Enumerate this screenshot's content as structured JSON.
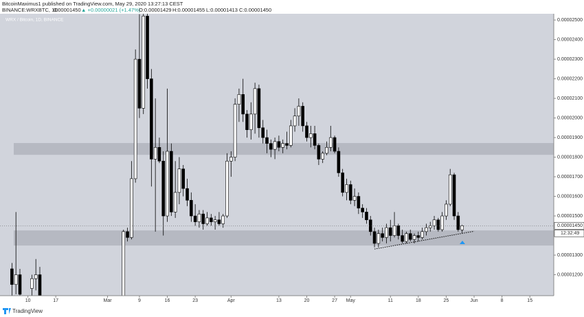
{
  "header": {
    "author": "BitcoinMaximus1 published on TradingView.com, May 29, 2020 13:27:13 CEST",
    "symbol": "BINANCE:WRXBTC, 1D",
    "last": "0.00001450",
    "change": "▲ +0.00000021 (+1.47%)",
    "ohlc": [
      "O:0.00001429",
      "H:0.00001455",
      "L:0.00001413",
      "C:0.00001450"
    ]
  },
  "price_tag": "0.00001450",
  "countdown": "12:32:49",
  "footer": "TradingView",
  "chart_data": {
    "type": "candlestick",
    "title": "WRX / Bitcoin, 1D, BINANCE",
    "x": [
      "2020-02-06",
      "2020-02-07",
      "2020-02-08",
      "2020-02-11",
      "2020-02-12",
      "2020-02-13",
      "2020-03-05",
      "2020-03-06",
      "2020-03-07",
      "2020-03-08",
      "2020-03-09",
      "2020-03-10",
      "2020-03-11",
      "2020-03-12",
      "2020-03-13",
      "2020-03-14",
      "2020-03-15",
      "2020-03-16",
      "2020-03-17",
      "2020-03-18",
      "2020-03-19",
      "2020-03-20",
      "2020-03-21",
      "2020-03-22",
      "2020-03-23",
      "2020-03-24",
      "2020-03-25",
      "2020-03-26",
      "2020-03-27",
      "2020-03-28",
      "2020-03-29",
      "2020-03-30",
      "2020-03-31",
      "2020-04-01",
      "2020-04-02",
      "2020-04-03",
      "2020-04-04",
      "2020-04-05",
      "2020-04-06",
      "2020-04-07",
      "2020-04-08",
      "2020-04-09",
      "2020-04-10",
      "2020-04-11",
      "2020-04-12",
      "2020-04-13",
      "2020-04-14",
      "2020-04-15",
      "2020-04-16",
      "2020-04-17",
      "2020-04-18",
      "2020-04-19",
      "2020-04-20",
      "2020-04-21",
      "2020-04-22",
      "2020-04-23",
      "2020-04-24",
      "2020-04-25",
      "2020-04-26",
      "2020-04-27",
      "2020-04-28",
      "2020-04-29",
      "2020-04-30",
      "2020-05-01",
      "2020-05-02",
      "2020-05-03",
      "2020-05-04",
      "2020-05-05",
      "2020-05-06",
      "2020-05-07",
      "2020-05-08",
      "2020-05-09",
      "2020-05-10",
      "2020-05-11",
      "2020-05-12",
      "2020-05-13",
      "2020-05-14",
      "2020-05-15",
      "2020-05-16",
      "2020-05-17",
      "2020-05-18",
      "2020-05-19",
      "2020-05-20",
      "2020-05-21",
      "2020-05-22",
      "2020-05-23",
      "2020-05-24",
      "2020-05-25",
      "2020-05-26",
      "2020-05-27",
      "2020-05-28",
      "2020-05-29"
    ],
    "open": [
      1.23e-05,
      1.15e-05,
      1.2e-05,
      1.13e-05,
      1.18e-05,
      1.2e-05,
      1.06e-05,
      1.42e-05,
      1.39e-05,
      1.69e-05,
      2.3e-05,
      2.05e-05,
      2.52e-05,
      2.2e-05,
      1.79e-05,
      1.85e-05,
      1.78e-05,
      1.5e-05,
      1.83e-05,
      1.52e-05,
      1.62e-05,
      1.74e-05,
      1.64e-05,
      1.58e-05,
      1.5e-05,
      1.47e-05,
      1.51e-05,
      1.46e-05,
      1.49e-05,
      1.47e-05,
      1.48e-05,
      1.46e-05,
      1.5e-05,
      1.78e-05,
      1.8e-05,
      2.07e-05,
      2.12e-05,
      2.02e-05,
      1.94e-05,
      2.02e-05,
      2.15e-05,
      1.95e-05,
      1.9e-05,
      1.87e-05,
      1.84e-05,
      1.88e-05,
      1.85e-05,
      1.87e-05,
      1.86e-05,
      1.96e-05,
      2.01e-05,
      2.06e-05,
      1.96e-05,
      1.9e-05,
      1.92e-05,
      1.86e-05,
      1.79e-05,
      1.82e-05,
      1.85e-05,
      1.9e-05,
      1.83e-05,
      1.72e-05,
      1.62e-05,
      1.66e-05,
      1.58e-05,
      1.6e-05,
      1.54e-05,
      1.52e-05,
      1.48e-05,
      1.42e-05,
      1.36e-05,
      1.41e-05,
      1.39e-05,
      1.44e-05,
      1.4e-05,
      1.45e-05,
      1.4e-05,
      1.37e-05,
      1.41e-05,
      1.38e-05,
      1.4e-05,
      1.39e-05,
      1.42e-05,
      1.44e-05,
      1.45e-05,
      1.48e-05,
      1.43e-05,
      1.5e-05,
      1.56e-05,
      1.71e-05,
      1.5e-05,
      1.429e-05
    ],
    "high": [
      1.26e-05,
      1.52e-05,
      1.23e-05,
      1.2e-05,
      1.28e-05,
      1.24e-05,
      1.43e-05,
      1.44e-05,
      1.78e-05,
      2.35e-05,
      2.53e-05,
      2.56e-05,
      2.56e-05,
      2.25e-05,
      2.1e-05,
      1.9e-05,
      1.83e-05,
      2.15e-05,
      1.87e-05,
      1.78e-05,
      1.8e-05,
      1.76e-05,
      1.69e-05,
      1.62e-05,
      1.56e-05,
      1.53e-05,
      1.53e-05,
      1.52e-05,
      1.51e-05,
      1.5e-05,
      1.52e-05,
      1.51e-05,
      1.82e-05,
      1.83e-05,
      2.1e-05,
      2.15e-05,
      2.2e-05,
      2.04e-05,
      2.08e-05,
      2.18e-05,
      2.17e-05,
      1.99e-05,
      1.94e-05,
      1.89e-05,
      1.9e-05,
      1.91e-05,
      1.89e-05,
      1.93e-05,
      1.99e-05,
      2.05e-05,
      2.1e-05,
      2.08e-05,
      1.98e-05,
      1.96e-05,
      1.96e-05,
      1.87e-05,
      1.83e-05,
      1.88e-05,
      1.96e-05,
      1.91e-05,
      1.85e-05,
      1.74e-05,
      1.69e-05,
      1.68e-05,
      1.64e-05,
      1.62e-05,
      1.56e-05,
      1.54e-05,
      1.5e-05,
      1.44e-05,
      1.43e-05,
      1.44e-05,
      1.46e-05,
      1.48e-05,
      1.52e-05,
      1.46e-05,
      1.43e-05,
      1.42e-05,
      1.43e-05,
      1.41e-05,
      1.42e-05,
      1.44e-05,
      1.46e-05,
      1.47e-05,
      1.5e-05,
      1.49e-05,
      1.52e-05,
      1.58e-05,
      1.74e-05,
      1.72e-05,
      1.52e-05,
      1.455e-05
    ],
    "low": [
      1.08e-05,
      1.1e-05,
      1.08e-05,
      1.08e-05,
      1.12e-05,
      1.05e-05,
      1.04e-05,
      1.37e-05,
      1.38e-05,
      1.67e-05,
      2e-05,
      2.02e-05,
      2.15e-05,
      1.65e-05,
      1.42e-05,
      1.77e-05,
      1.4e-05,
      1.47e-05,
      1.5e-05,
      1.49e-05,
      1.56e-05,
      1.6e-05,
      1.55e-05,
      1.47e-05,
      1.45e-05,
      1.44e-05,
      1.43e-05,
      1.45e-05,
      1.45e-05,
      1.43e-05,
      1.45e-05,
      1.44e-05,
      1.49e-05,
      1.7e-05,
      1.78e-05,
      1.98e-05,
      1.98e-05,
      1.9e-05,
      1.89e-05,
      1.92e-05,
      1.9e-05,
      1.87e-05,
      1.82e-05,
      1.8e-05,
      1.79e-05,
      1.83e-05,
      1.82e-05,
      1.84e-05,
      1.85e-05,
      1.93e-05,
      1.96e-05,
      1.93e-05,
      1.88e-05,
      1.85e-05,
      1.84e-05,
      1.76e-05,
      1.77e-05,
      1.81e-05,
      1.83e-05,
      1.82e-05,
      1.7e-05,
      1.6e-05,
      1.58e-05,
      1.56e-05,
      1.55e-05,
      1.51e-05,
      1.49e-05,
      1.46e-05,
      1.4e-05,
      1.34e-05,
      1.34e-05,
      1.37e-05,
      1.36e-05,
      1.37e-05,
      1.39e-05,
      1.38e-05,
      1.36e-05,
      1.36e-05,
      1.37e-05,
      1.36e-05,
      1.37e-05,
      1.38e-05,
      1.4e-05,
      1.42e-05,
      1.43e-05,
      1.42e-05,
      1.42e-05,
      1.48e-05,
      1.55e-05,
      1.48e-05,
      1.42e-05,
      1.413e-05
    ],
    "close": [
      1.15e-05,
      1.2e-05,
      1.1e-05,
      1.18e-05,
      1.2e-05,
      1.08e-05,
      1.42e-05,
      1.39e-05,
      1.69e-05,
      2.3e-05,
      2.05e-05,
      2.52e-05,
      2.2e-05,
      1.79e-05,
      1.85e-05,
      1.78e-05,
      1.5e-05,
      1.83e-05,
      1.52e-05,
      1.62e-05,
      1.74e-05,
      1.64e-05,
      1.58e-05,
      1.5e-05,
      1.47e-05,
      1.51e-05,
      1.46e-05,
      1.49e-05,
      1.47e-05,
      1.48e-05,
      1.46e-05,
      1.5e-05,
      1.78e-05,
      1.8e-05,
      2.07e-05,
      2.12e-05,
      2.02e-05,
      1.94e-05,
      2.02e-05,
      2.15e-05,
      1.95e-05,
      1.9e-05,
      1.87e-05,
      1.84e-05,
      1.88e-05,
      1.85e-05,
      1.87e-05,
      1.86e-05,
      1.96e-05,
      2.01e-05,
      2.06e-05,
      1.96e-05,
      1.9e-05,
      1.92e-05,
      1.86e-05,
      1.79e-05,
      1.82e-05,
      1.85e-05,
      1.9e-05,
      1.83e-05,
      1.72e-05,
      1.62e-05,
      1.66e-05,
      1.58e-05,
      1.6e-05,
      1.54e-05,
      1.52e-05,
      1.48e-05,
      1.42e-05,
      1.36e-05,
      1.41e-05,
      1.39e-05,
      1.44e-05,
      1.4e-05,
      1.45e-05,
      1.4e-05,
      1.37e-05,
      1.41e-05,
      1.38e-05,
      1.4e-05,
      1.39e-05,
      1.42e-05,
      1.44e-05,
      1.45e-05,
      1.48e-05,
      1.43e-05,
      1.5e-05,
      1.56e-05,
      1.71e-05,
      1.5e-05,
      1.43e-05,
      1.45e-05
    ],
    "up_color": "#ffffff",
    "down_color": "#000000",
    "zones": [
      [
        1.812e-05,
        1.872e-05
      ],
      [
        1.349e-05,
        1.426e-05
      ]
    ],
    "trendline": {
      "x": [
        "2020-05-07",
        "2020-06-01"
      ],
      "y": [
        1.331e-05,
        1.422e-05
      ]
    },
    "xlim": [
      "2020-02-03",
      "2020-06-21"
    ],
    "ylim": [
      1.093e-05,
      2.532e-05
    ],
    "xticks": [
      {
        "value": "2020-02-10",
        "label": "10"
      },
      {
        "value": "2020-02-17",
        "label": "17"
      },
      {
        "value": "2020-03-01",
        "label": "Mar"
      },
      {
        "value": "2020-03-09",
        "label": "9"
      },
      {
        "value": "2020-03-16",
        "label": "16"
      },
      {
        "value": "2020-03-23",
        "label": "23"
      },
      {
        "value": "2020-04-01",
        "label": "Apr"
      },
      {
        "value": "2020-04-13",
        "label": "13"
      },
      {
        "value": "2020-04-20",
        "label": "20"
      },
      {
        "value": "2020-04-27",
        "label": "27"
      },
      {
        "value": "2020-05-01",
        "label": "May"
      },
      {
        "value": "2020-05-11",
        "label": "11"
      },
      {
        "value": "2020-05-18",
        "label": "18"
      },
      {
        "value": "2020-05-25",
        "label": "25"
      },
      {
        "value": "2020-06-01",
        "label": "Jun"
      },
      {
        "value": "2020-06-08",
        "label": "8"
      },
      {
        "value": "2020-06-15",
        "label": "15"
      }
    ],
    "yticks": [
      {
        "value": 1.2e-05,
        "label": "0.00001200"
      },
      {
        "value": 1.3e-05,
        "label": "0.00001300"
      },
      {
        "value": 1.5e-05,
        "label": "0.00001500"
      },
      {
        "value": 1.6e-05,
        "label": "0.00001600"
      },
      {
        "value": 1.7e-05,
        "label": "0.00001700"
      },
      {
        "value": 1.8e-05,
        "label": "0.00001800"
      },
      {
        "value": 1.9e-05,
        "label": "0.00001900"
      },
      {
        "value": 2e-05,
        "label": "0.00002000"
      },
      {
        "value": 2.1e-05,
        "label": "0.00002100"
      },
      {
        "value": 2.2e-05,
        "label": "0.00002200"
      },
      {
        "value": 2.3e-05,
        "label": "0.00002300"
      },
      {
        "value": 2.4e-05,
        "label": "0.00002400"
      },
      {
        "value": 2.5e-05,
        "label": "0.00002500"
      }
    ]
  }
}
